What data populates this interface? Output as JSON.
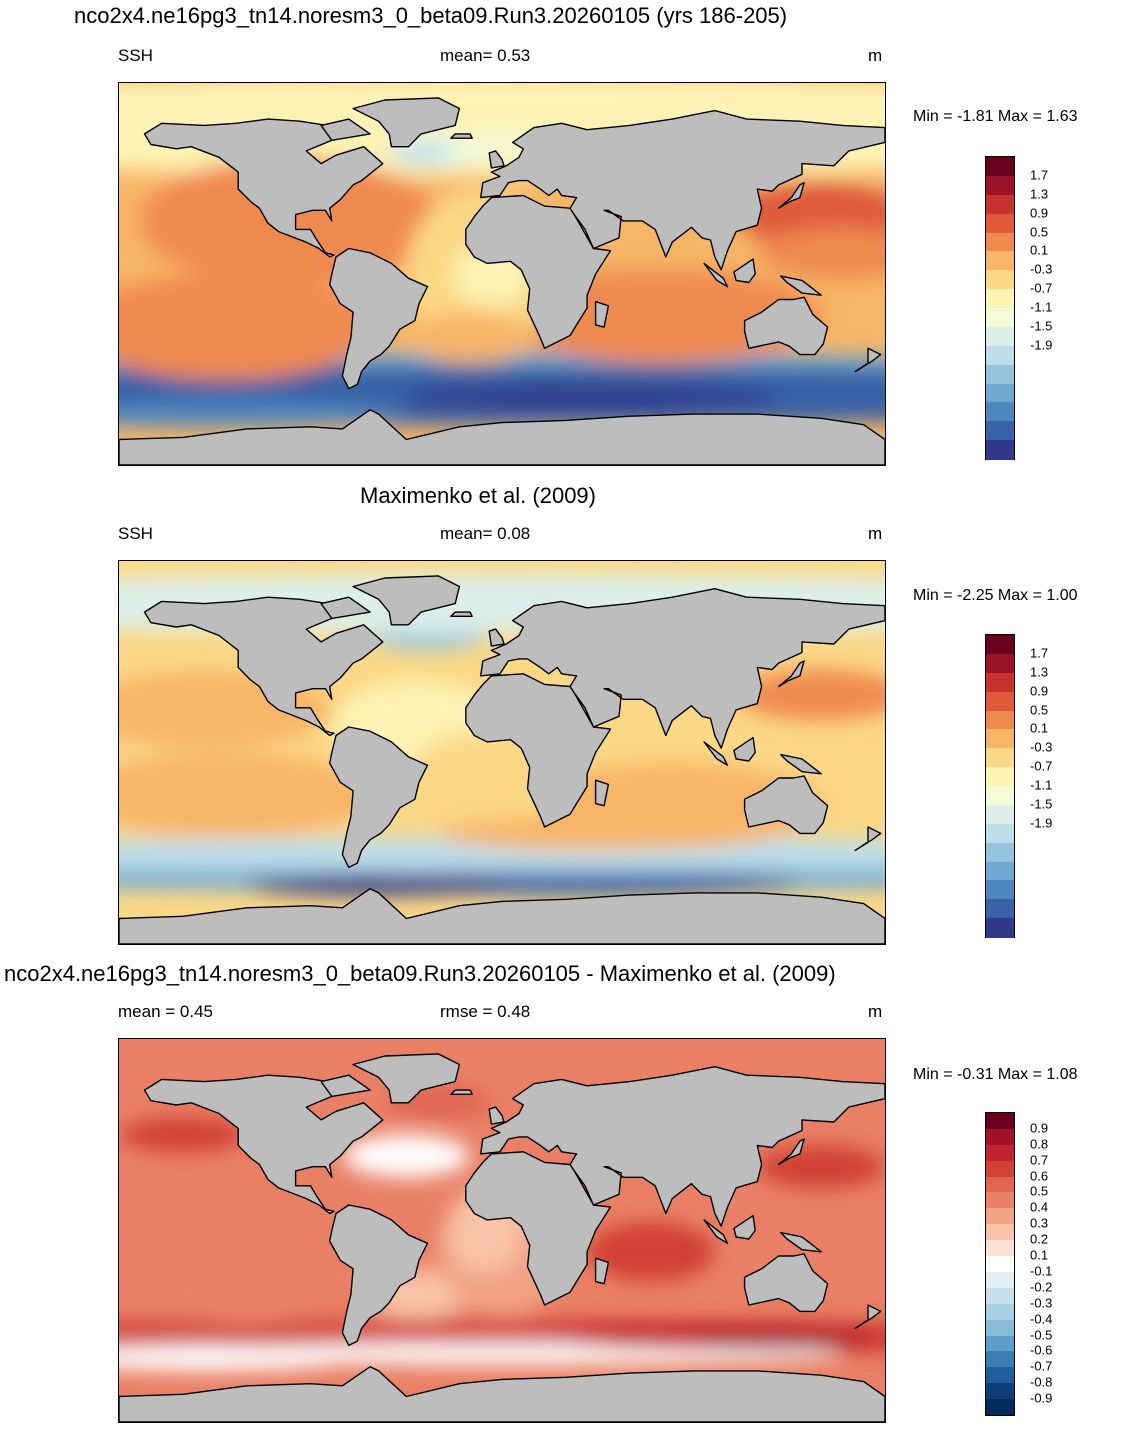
{
  "panels": [
    {
      "title": "nco2x4.ne16pg3_tn14.noresm3_0_beta09.Run3.20260105 (yrs 186-205)",
      "left_label": "SSH",
      "center_label": "mean=   0.53",
      "right_label": "m",
      "minmax": "Min =  -1.81 Max =   1.63",
      "colorbar": {
        "labels": [
          "1.7",
          "1.3",
          "0.9",
          "0.5",
          "0.1",
          "-0.3",
          "-0.7",
          "-1.1",
          "-1.5",
          "-1.9"
        ],
        "colors": [
          "#67001f",
          "#9a1326",
          "#c7332c",
          "#de5a3b",
          "#ef8a4f",
          "#f7b567",
          "#fbd886",
          "#fdf3b4",
          "#f5fbd6",
          "#dcefe9",
          "#bcdde9",
          "#95c5de",
          "#6fa8d0",
          "#4e86bf",
          "#3961a6",
          "#30398a"
        ]
      },
      "field": "model",
      "regions": {
        "far_south": "Antarctic circumpolar low",
        "blobs": "Western boundary currents high"
      }
    },
    {
      "title": "Maximenko et al. (2009)",
      "left_label": "SSH",
      "center_label": "mean=   0.08",
      "right_label": "m",
      "minmax": "Min =  -2.25 Max =   1.00",
      "colorbar": {
        "labels": [
          "1.7",
          "1.3",
          "0.9",
          "0.5",
          "0.1",
          "-0.3",
          "-0.7",
          "-1.1",
          "-1.5",
          "-1.9"
        ],
        "colors": [
          "#67001f",
          "#9a1326",
          "#c7332c",
          "#de5a3b",
          "#ef8a4f",
          "#f7b567",
          "#fbd886",
          "#fdf3b4",
          "#f5fbd6",
          "#dcefe9",
          "#bcdde9",
          "#95c5de",
          "#6fa8d0",
          "#4e86bf",
          "#3961a6",
          "#30398a"
        ]
      },
      "field": "obs"
    },
    {
      "title": "nco2x4.ne16pg3_tn14.noresm3_0_beta09.Run3.20260105 - Maximenko et al. (2009)",
      "left_label": "mean =   0.45",
      "center_label": "rmse =   0.48",
      "right_label": "m",
      "minmax": "Min =  -0.31 Max =   1.08",
      "colorbar": {
        "labels": [
          "0.9",
          "0.8",
          "0.7",
          "0.6",
          "0.5",
          "0.4",
          "0.3",
          "0.2",
          "0.1",
          "-0.1",
          "-0.2",
          "-0.3",
          "-0.4",
          "-0.5",
          "-0.6",
          "-0.7",
          "-0.8",
          "-0.9"
        ],
        "colors": [
          "#67001f",
          "#a11228",
          "#c2242f",
          "#d14134",
          "#df6552",
          "#e98065",
          "#f2a384",
          "#f8c3a8",
          "#fde1d3",
          "#ffffff",
          "#e1eef5",
          "#c5e0ec",
          "#a6cfe3",
          "#86bbd9",
          "#5d9ec8",
          "#3a7eb5",
          "#1f5d9c",
          "#0d3d79",
          "#052a5a"
        ]
      },
      "field": "diff"
    }
  ]
}
